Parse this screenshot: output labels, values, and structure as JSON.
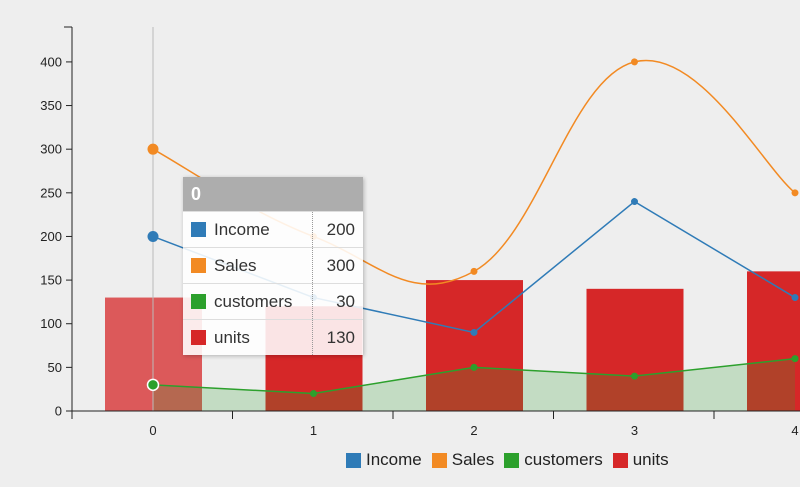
{
  "chart_data": {
    "type": "bar",
    "categories": [
      "0",
      "1",
      "2",
      "3",
      "4"
    ],
    "series": [
      {
        "name": "Income",
        "kind": "line",
        "values": [
          200,
          130,
          90,
          240,
          130
        ],
        "color": "#2f7bb7"
      },
      {
        "name": "Sales",
        "kind": "spline",
        "values": [
          300,
          200,
          160,
          400,
          250
        ],
        "color": "#f28a23"
      },
      {
        "name": "customers",
        "kind": "area",
        "values": [
          30,
          20,
          50,
          40,
          60
        ],
        "color": "#2ca02c"
      },
      {
        "name": "units",
        "kind": "bar",
        "values": [
          130,
          120,
          150,
          140,
          160
        ],
        "color": "#d62728"
      }
    ],
    "y_ticks": [
      0,
      50,
      100,
      150,
      200,
      250,
      300,
      350,
      400
    ],
    "ylim": [
      0,
      440
    ],
    "grid": false,
    "legend_position": "bottom"
  },
  "tooltip": {
    "title": "0",
    "rows": [
      {
        "name": "Income",
        "value": "200",
        "color": "#2f7bb7"
      },
      {
        "name": "Sales",
        "value": "300",
        "color": "#f28a23"
      },
      {
        "name": "customers",
        "value": "30",
        "color": "#2ca02c"
      },
      {
        "name": "units",
        "value": "130",
        "color": "#d62728"
      }
    ]
  }
}
